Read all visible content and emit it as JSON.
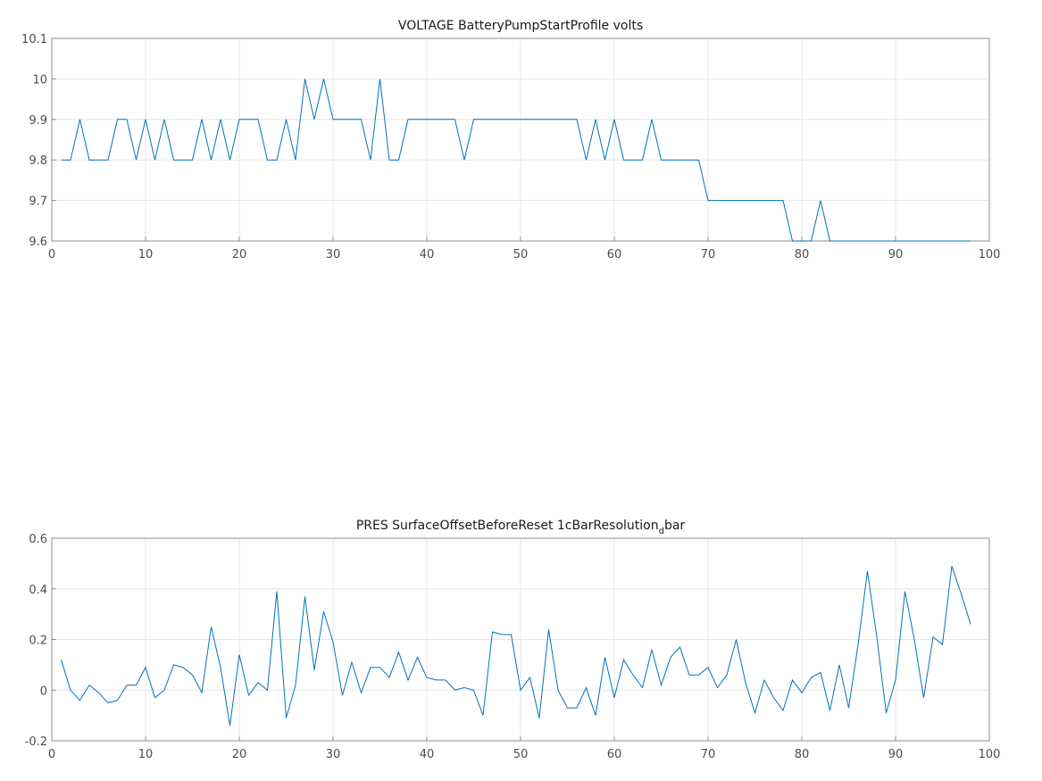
{
  "chart_data": [
    {
      "type": "line",
      "title": "VOLTAGE BatteryPumpStartProfile volts",
      "xlabel": "",
      "ylabel": "",
      "xlim": [
        0,
        100
      ],
      "ylim": [
        9.6,
        10.1
      ],
      "xticks": [
        0,
        10,
        20,
        30,
        40,
        50,
        60,
        70,
        80,
        90,
        100
      ],
      "yticks": [
        9.6,
        9.7,
        9.8,
        9.9,
        10,
        10.1
      ],
      "xtick_labels": [
        "0",
        "10",
        "20",
        "30",
        "40",
        "50",
        "60",
        "70",
        "80",
        "90",
        "100"
      ],
      "ytick_labels": [
        "9.6",
        "9.7",
        "9.8",
        "9.9",
        "10",
        "10.1"
      ],
      "grid": true,
      "series": [
        {
          "color": "#0072bd",
          "x": [
            1,
            2,
            3,
            4,
            5,
            6,
            7,
            8,
            9,
            10,
            11,
            12,
            13,
            14,
            15,
            16,
            17,
            18,
            19,
            20,
            21,
            22,
            23,
            24,
            25,
            26,
            27,
            28,
            29,
            30,
            31,
            32,
            33,
            34,
            35,
            36,
            37,
            38,
            39,
            40,
            41,
            42,
            43,
            44,
            45,
            46,
            47,
            48,
            49,
            50,
            51,
            52,
            53,
            54,
            55,
            56,
            57,
            58,
            59,
            60,
            61,
            62,
            63,
            64,
            65,
            66,
            67,
            68,
            69,
            70,
            71,
            72,
            73,
            74,
            75,
            76,
            77,
            78,
            79,
            80,
            81,
            82,
            83,
            84,
            85,
            86,
            87,
            88,
            89,
            90,
            91,
            92,
            93,
            94,
            95,
            96,
            97,
            98
          ],
          "y": [
            9.8,
            9.8,
            9.9,
            9.8,
            9.8,
            9.8,
            9.9,
            9.9,
            9.8,
            9.9,
            9.8,
            9.9,
            9.8,
            9.8,
            9.8,
            9.9,
            9.8,
            9.9,
            9.8,
            9.9,
            9.9,
            9.9,
            9.8,
            9.8,
            9.9,
            9.8,
            10.0,
            9.9,
            10.0,
            9.9,
            9.9,
            9.9,
            9.9,
            9.8,
            10.0,
            9.8,
            9.8,
            9.9,
            9.9,
            9.9,
            9.9,
            9.9,
            9.9,
            9.8,
            9.9,
            9.9,
            9.9,
            9.9,
            9.9,
            9.9,
            9.9,
            9.9,
            9.9,
            9.9,
            9.9,
            9.9,
            9.8,
            9.9,
            9.8,
            9.9,
            9.8,
            9.8,
            9.8,
            9.9,
            9.8,
            9.8,
            9.8,
            9.8,
            9.8,
            9.7,
            9.7,
            9.7,
            9.7,
            9.7,
            9.7,
            9.7,
            9.7,
            9.7,
            9.6,
            9.6,
            9.6,
            9.7,
            9.6,
            9.6,
            9.6,
            9.6,
            9.6,
            9.6,
            9.6,
            9.6,
            9.6,
            9.6,
            9.6,
            9.6,
            9.6,
            9.6,
            9.6,
            9.6
          ]
        }
      ]
    },
    {
      "type": "line",
      "title": "PRES SurfaceOffsetBeforeReset 1cBarResolution",
      "title_subscript": "d",
      "title_suffix": "bar",
      "xlabel": "",
      "ylabel": "",
      "xlim": [
        0,
        100
      ],
      "ylim": [
        -0.2,
        0.6
      ],
      "xticks": [
        0,
        10,
        20,
        30,
        40,
        50,
        60,
        70,
        80,
        90,
        100
      ],
      "yticks": [
        -0.2,
        0,
        0.2,
        0.4,
        0.6
      ],
      "xtick_labels": [
        "0",
        "10",
        "20",
        "30",
        "40",
        "50",
        "60",
        "70",
        "80",
        "90",
        "100"
      ],
      "ytick_labels": [
        "-0.2",
        "0",
        "0.2",
        "0.4",
        "0.6"
      ],
      "grid": true,
      "series": [
        {
          "color": "#0072bd",
          "x": [
            1,
            2,
            3,
            4,
            5,
            6,
            7,
            8,
            9,
            10,
            11,
            12,
            13,
            14,
            15,
            16,
            17,
            18,
            19,
            20,
            21,
            22,
            23,
            24,
            25,
            26,
            27,
            28,
            29,
            30,
            31,
            32,
            33,
            34,
            35,
            36,
            37,
            38,
            39,
            40,
            41,
            42,
            43,
            44,
            45,
            46,
            47,
            48,
            49,
            50,
            51,
            52,
            53,
            54,
            55,
            56,
            57,
            58,
            59,
            60,
            61,
            62,
            63,
            64,
            65,
            66,
            67,
            68,
            69,
            70,
            71,
            72,
            73,
            74,
            75,
            76,
            77,
            78,
            79,
            80,
            81,
            82,
            83,
            84,
            85,
            86,
            87,
            88,
            89,
            90,
            91,
            92,
            93,
            94,
            95,
            96,
            97,
            98
          ],
          "y": [
            0.12,
            0.0,
            -0.04,
            0.02,
            -0.01,
            -0.05,
            -0.04,
            0.02,
            0.02,
            0.09,
            -0.03,
            0.0,
            0.1,
            0.09,
            0.06,
            -0.01,
            0.25,
            0.09,
            -0.14,
            0.14,
            -0.02,
            0.03,
            0.0,
            0.39,
            -0.11,
            0.02,
            0.37,
            0.08,
            0.31,
            0.19,
            -0.02,
            0.11,
            -0.01,
            0.09,
            0.09,
            0.05,
            0.15,
            0.04,
            0.13,
            0.05,
            0.04,
            0.04,
            0.0,
            0.01,
            0.0,
            -0.1,
            0.23,
            0.22,
            0.22,
            0.0,
            0.05,
            -0.11,
            0.24,
            0.0,
            -0.07,
            -0.07,
            0.01,
            -0.1,
            0.13,
            -0.03,
            0.12,
            0.06,
            0.01,
            0.16,
            0.02,
            0.13,
            0.17,
            0.06,
            0.06,
            0.09,
            0.01,
            0.06,
            0.2,
            0.03,
            -0.09,
            0.04,
            -0.03,
            -0.08,
            0.04,
            -0.01,
            0.05,
            0.07,
            -0.08,
            0.1,
            -0.07,
            0.18,
            0.47,
            0.21,
            -0.09,
            0.04,
            0.39,
            0.2,
            -0.03,
            0.21,
            0.18,
            0.49,
            0.38,
            0.26
          ]
        }
      ]
    }
  ]
}
